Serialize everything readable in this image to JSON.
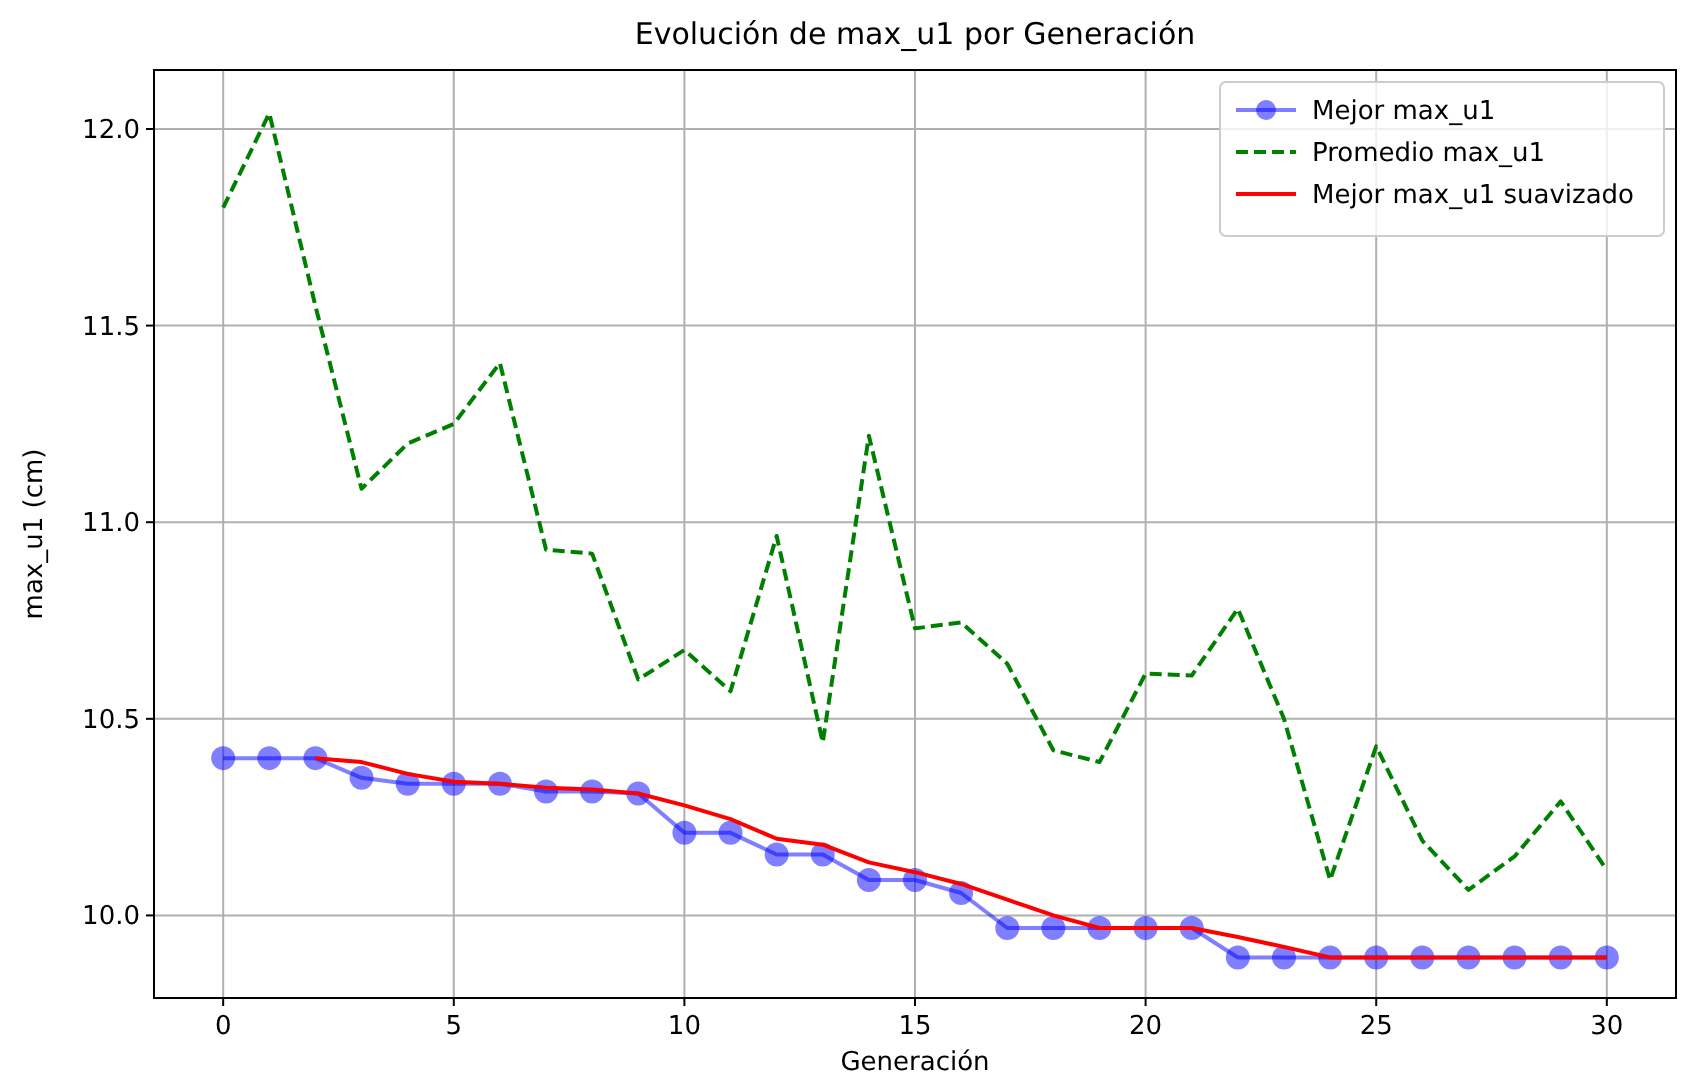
{
  "chart_data": {
    "type": "line",
    "title": "Evolución de max_u1 por Generación",
    "xlabel": "Generación",
    "ylabel": "max_u1 (cm)",
    "xlim": [
      -1.5,
      31.5
    ],
    "xticks": [
      0,
      5,
      10,
      15,
      20,
      25,
      30
    ],
    "ylim": [
      9.79,
      12.15
    ],
    "yticks": [
      {
        "value": 10,
        "label": "10.0"
      },
      10.5,
      {
        "value": 11,
        "label": "11.0"
      },
      11.5,
      {
        "value": 12,
        "label": "12.0"
      }
    ],
    "grid": true,
    "legend": "top right",
    "series": [
      {
        "name": "Mejor max_u1",
        "color": "#0000ff",
        "marker": "circle",
        "line_style": "solid",
        "x": [
          0,
          1,
          2,
          3,
          4,
          5,
          6,
          7,
          8,
          9,
          10,
          11,
          12,
          13,
          14,
          15,
          16,
          17,
          18,
          19,
          20,
          21,
          22,
          23,
          24,
          25,
          26,
          27,
          28,
          29,
          30
        ],
        "values": [
          10.4,
          10.4,
          10.4,
          10.35,
          10.335,
          10.335,
          10.335,
          10.315,
          10.315,
          10.31,
          10.21,
          10.21,
          10.155,
          10.155,
          10.09,
          10.09,
          10.057,
          9.968,
          9.968,
          9.968,
          9.968,
          9.968,
          9.893,
          9.893,
          9.893,
          9.893,
          9.893,
          9.893,
          9.893,
          9.893,
          9.893
        ]
      },
      {
        "name": "Promedio max_u1",
        "color": "#008000",
        "marker": "none",
        "line_style": "dashed",
        "x": [
          0,
          1,
          2,
          3,
          4,
          5,
          6,
          7,
          8,
          9,
          10,
          11,
          12,
          13,
          14,
          15,
          16,
          17,
          18,
          19,
          20,
          21,
          22,
          23,
          24,
          25,
          26,
          27,
          28,
          29,
          30
        ],
        "values": [
          11.8,
          12.04,
          11.55,
          11.085,
          11.2,
          11.25,
          11.405,
          10.93,
          10.92,
          10.6,
          10.675,
          10.57,
          10.965,
          10.44,
          11.22,
          10.73,
          10.745,
          10.64,
          10.42,
          10.39,
          10.615,
          10.61,
          10.78,
          10.5,
          10.09,
          10.43,
          10.19,
          10.065,
          10.15,
          10.29,
          10.115
        ]
      },
      {
        "name": "Mejor max_u1 suavizado",
        "color": "#ff0000",
        "marker": "none",
        "line_style": "solid",
        "x": [
          2,
          3,
          4,
          5,
          6,
          7,
          8,
          9,
          10,
          11,
          12,
          13,
          14,
          15,
          16,
          17,
          18,
          19,
          20,
          21,
          22,
          23,
          24,
          25,
          26,
          27,
          28,
          29,
          30
        ],
        "values": [
          10.4,
          10.39,
          10.36,
          10.34,
          10.335,
          10.325,
          10.32,
          10.31,
          10.28,
          10.245,
          10.195,
          10.18,
          10.135,
          10.11,
          10.08,
          10.04,
          10.0,
          9.968,
          9.968,
          9.968,
          9.945,
          9.92,
          9.893,
          9.893,
          9.893,
          9.893,
          9.893,
          9.893,
          9.893
        ]
      }
    ]
  }
}
